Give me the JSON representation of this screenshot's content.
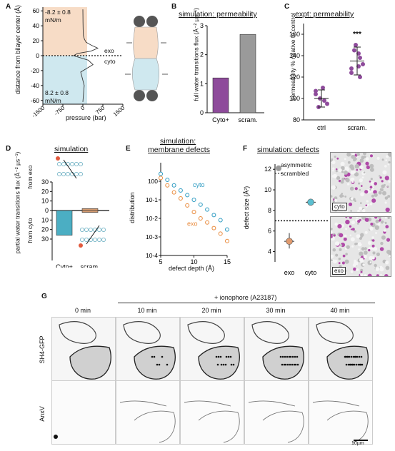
{
  "panels": {
    "A": {
      "letter": "A",
      "ylabel": "distance from bilayer center (Å)",
      "xlabel": "pressure (bar)",
      "top_tension": "-8.2 ± 0.8",
      "bottom_tension": "8.2 ± 0.8",
      "unit": "mN/m",
      "exo": "exo",
      "cyto": "cyto"
    },
    "B": {
      "letter": "B",
      "title": "simulation: permeability",
      "ylabel": "full water transitions flux (Å⁻² µs⁻¹)"
    },
    "C": {
      "letter": "C",
      "title": "expt: permeability",
      "ylabel": "permeability % relative to control",
      "sig": "***"
    },
    "D": {
      "letter": "D",
      "title": "simulation",
      "ylabel": "partial water transitions flux (Å⁻² µs⁻¹)",
      "from_exo": "from exo",
      "from_cyto": "from cyto"
    },
    "E": {
      "letter": "E",
      "title1": "simulation:",
      "title2": "membrane defects",
      "ylabel": "distribution",
      "xlabel": "defect depth (Å)",
      "cyto": "cyto",
      "exo": "exo"
    },
    "F": {
      "letter": "F",
      "title": "simulation: defects",
      "ylabel": "defect size (Å²)",
      "legend_asym": "asymmetric",
      "legend_scram": "scrambled",
      "img_cyto": "cyto",
      "img_exo": "exo"
    },
    "G": {
      "letter": "G",
      "ionophore": "+ ionophore (A23187)",
      "times": [
        "0 min",
        "10 min",
        "20 min",
        "30 min",
        "40 min"
      ],
      "rows": [
        "SH4-GFP",
        "AnxV"
      ],
      "scalebar": "10µm"
    }
  },
  "chart_data": [
    {
      "panel": "A",
      "type": "line",
      "x": [
        0,
        2,
        5,
        10,
        20,
        60,
        120,
        320,
        560,
        300,
        -200,
        -350,
        200,
        380,
        150,
        -80,
        50,
        0
      ],
      "y": [
        62,
        55,
        45,
        35,
        27,
        22,
        18,
        14,
        10,
        6,
        3,
        0,
        -6,
        -12,
        -17,
        -22,
        -40,
        -62
      ],
      "xticks": [
        -1500,
        -750,
        0,
        750,
        1500
      ],
      "yticks": [
        -60,
        -40,
        -20,
        0,
        20,
        40,
        60
      ],
      "xlabel": "pressure (bar)",
      "ylabel": "distance from bilayer center (Å)",
      "xlim": [
        -1500,
        1500
      ],
      "ylim": [
        -65,
        65
      ],
      "colors": {
        "exo": "#f7dcc6",
        "cyto": "#cfe8ef"
      }
    },
    {
      "panel": "B",
      "type": "bar",
      "categories": [
        "Cyto+",
        "scram."
      ],
      "values": [
        1.2,
        2.7
      ],
      "colors": [
        "#8e4b9b",
        "#9a9a9a"
      ],
      "yticks": [
        0,
        1,
        2,
        3
      ],
      "ylim": [
        0,
        3
      ]
    },
    {
      "panel": "C",
      "type": "scatter",
      "categories": [
        "ctrl",
        "scram."
      ],
      "points": [
        [
          104,
          110,
          98,
          92,
          100,
          95,
          107
        ],
        [
          124,
          130,
          138,
          145,
          150,
          132,
          128,
          142,
          120
        ]
      ],
      "means": [
        100,
        135
      ],
      "errors": [
        [
          92,
          108
        ],
        [
          122,
          148
        ]
      ],
      "colors": [
        "#8e4b9b",
        "#8e4b9b"
      ],
      "yticks": [
        80,
        100,
        120,
        140,
        160
      ],
      "ylim": [
        80,
        170
      ]
    },
    {
      "panel": "D",
      "type": "bar",
      "categories": [
        "Cyto+",
        "scram."
      ],
      "values_exo": [
        0,
        2
      ],
      "values_cyto": [
        26,
        2
      ],
      "colors": [
        "#4baec3",
        "#d49b70"
      ],
      "yticks": [
        30,
        20,
        10,
        0,
        10,
        20,
        30
      ],
      "ylim": [
        -30,
        30
      ]
    },
    {
      "panel": "E",
      "type": "line",
      "series": [
        {
          "name": "cyto",
          "color": "#2b9ac1",
          "x": [
            5,
            6,
            7,
            8,
            9,
            10,
            11,
            12,
            13,
            14,
            15
          ],
          "y": [
            2.5,
            1.2,
            0.6,
            0.32,
            0.18,
            0.1,
            0.055,
            0.03,
            0.015,
            0.008,
            0.0025
          ]
        },
        {
          "name": "exo",
          "color": "#e98a3b",
          "x": [
            5,
            6,
            7,
            8,
            9,
            10,
            11,
            12,
            13,
            14,
            15
          ],
          "y": [
            1.5,
            0.6,
            0.25,
            0.12,
            0.05,
            0.022,
            0.01,
            0.006,
            0.003,
            0.0015,
            0.0006
          ]
        }
      ],
      "xticks": [
        5,
        10,
        15
      ],
      "yticks": [
        "10^0",
        "10^-1",
        "10^-2",
        "10^-3",
        "10^-4"
      ],
      "xlim": [
        5,
        15
      ],
      "ylim": [
        0.0001,
        10
      ],
      "log_y": true
    },
    {
      "panel": "F",
      "type": "scatter",
      "categories": [
        "exo",
        "cyto"
      ],
      "values": [
        5.0,
        8.8
      ],
      "errors": [
        [
          4.3,
          5.8
        ],
        [
          8.6,
          9.0
        ]
      ],
      "colors": [
        "#e09a6e",
        "#5bbfd0"
      ],
      "scrambled_line": 7.0,
      "yticks": [
        4,
        6,
        8,
        10,
        12
      ],
      "ylim": [
        3,
        12.5
      ]
    }
  ]
}
